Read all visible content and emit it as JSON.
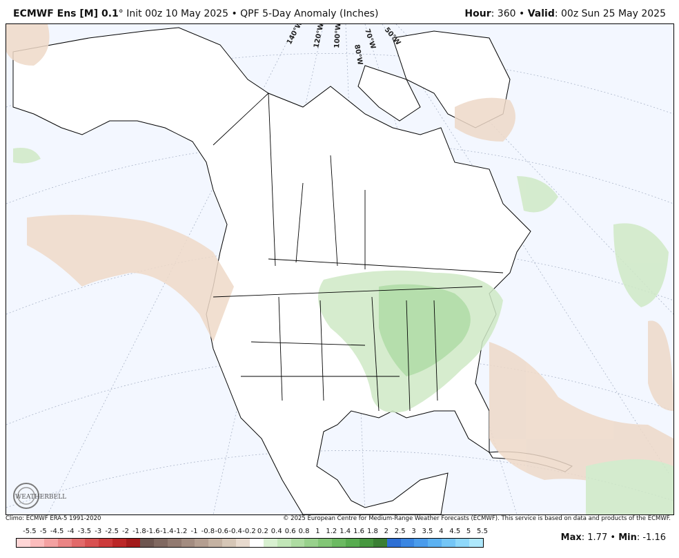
{
  "header": {
    "model": "ECMWF Ens [M] 0.1",
    "degree": "°",
    "init": "Init 00z 10 May 2025",
    "separator": "•",
    "product": "QPF 5-Day Anomaly (Inches)",
    "hour_label": "Hour",
    "hour_value": "360",
    "valid_label": "Valid",
    "valid_value": "00z Sun 25 May 2025"
  },
  "map": {
    "longitude_labels": [
      "140°W",
      "120°W",
      "100°W",
      "80°W",
      "70°W",
      "50°W"
    ],
    "logo_text": "WEATHERBELL",
    "colors": {
      "ocean": "#f3f7ff",
      "land": "#ffffff",
      "dry_light": "#eed9c8",
      "wet_light": "#cfe9c6",
      "wet_medium": "#a9d99e",
      "border": "#000000"
    }
  },
  "footer": {
    "climo": "Climo: ECMWF ERA-5 1991-2020",
    "copyright": "© 2025 European Centre for Medium-Range Weather Forecasts (ECMWF). This service is based on data and products of the ECMWF.",
    "max_label": "Max",
    "max_value": "1.77",
    "min_label": "Min",
    "min_value": "-1.16",
    "sep": "•"
  },
  "colorbar": {
    "labels": [
      "-5.5",
      "-5",
      "-4.5",
      "-4",
      "-3.5",
      "-3",
      "-2.5",
      "-2",
      "-1.8",
      "-1.6",
      "-1.4",
      "-1.2",
      "-1",
      "-0.8",
      "-0.6",
      "-0.4",
      "-0.2",
      "0.2",
      "0.4",
      "0.6",
      "0.8",
      "1",
      "1.2",
      "1.4",
      "1.6",
      "1.8",
      "2",
      "2.5",
      "3",
      "3.5",
      "4",
      "4.5",
      "5",
      "5.5"
    ],
    "colors": [
      "#ffd6d6",
      "#fbbcbc",
      "#f3a1a1",
      "#ea8484",
      "#e26a6a",
      "#d85151",
      "#cc3b3b",
      "#bb2727",
      "#a31b1b",
      "#6e5650",
      "#806860",
      "#927a70",
      "#a38c80",
      "#b49e90",
      "#c5b2a2",
      "#d6c6b6",
      "#e8dace",
      "#ffffff",
      "#d8f0d0",
      "#c2e6b8",
      "#aedca2",
      "#98d18c",
      "#82c676",
      "#6cba62",
      "#58ac50",
      "#46973f",
      "#3a7f34",
      "#2d6fd4",
      "#3a86e2",
      "#4a9cec",
      "#5cb2f2",
      "#74c6f6",
      "#8ed8fa",
      "#aee8fc"
    ]
  }
}
